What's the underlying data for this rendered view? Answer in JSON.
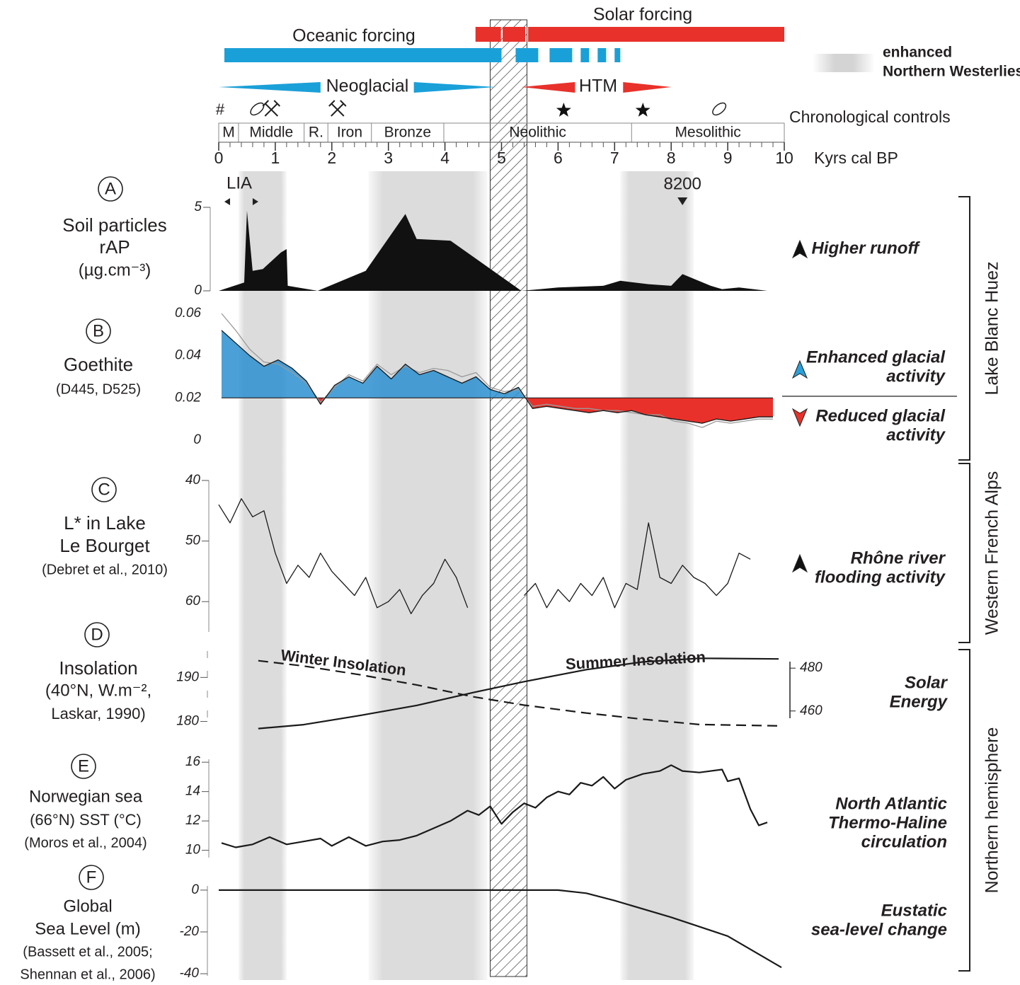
{
  "axis": {
    "xlim": [
      0,
      10
    ],
    "xticks": [
      0,
      1,
      2,
      3,
      4,
      5,
      6,
      7,
      8,
      9,
      10
    ],
    "label": "Kyrs cal BP"
  },
  "timeline": {
    "solar_forcing": {
      "label": "Solar forcing",
      "color": "#e8312a",
      "bars": [
        [
          4.54,
          4.99
        ],
        [
          5.02,
          5.42
        ],
        [
          5.47,
          10
        ]
      ]
    },
    "oceanic_forcing": {
      "label": "Oceanic forcing",
      "color": "#1aa0d8",
      "bars": [
        [
          0.1,
          5.0
        ],
        [
          5.25,
          5.65
        ],
        [
          5.85,
          6.25
        ],
        [
          6.4,
          6.55
        ],
        [
          6.7,
          6.85
        ],
        [
          7.0,
          7.1
        ]
      ]
    },
    "neoglacial": {
      "label": "Neoglacial",
      "color": "#1aa0d8",
      "wedges": [
        [
          0,
          1.8
        ],
        [
          4.9,
          3.45
        ]
      ]
    },
    "htm": {
      "label": "HTM",
      "color": "#e8312a",
      "wedges": [
        [
          5.35,
          6.3
        ],
        [
          8.0,
          7.15
        ]
      ]
    },
    "chronological_controls": {
      "label": "Chronological controls",
      "symbol": "#"
    },
    "periods": {
      "names": [
        "M",
        "Middle",
        "R.",
        "Iron",
        "Bronze",
        "Neolithic",
        "Mesolithic"
      ],
      "boundaries": [
        0,
        0.35,
        1.51,
        1.93,
        2.7,
        3.98,
        7.3,
        10
      ]
    },
    "bands": [
      [
        0.35,
        1.2
      ],
      [
        2.65,
        4.75
      ],
      [
        7.1,
        8.4
      ]
    ],
    "hatched": [
      4.8,
      5.45
    ],
    "legend": [
      "enhanced",
      "Northern Westerlies"
    ],
    "lia": {
      "label": "LIA",
      "range": [
        0.1,
        0.7
      ]
    },
    "event": {
      "label": "8200",
      "x": 8.2
    }
  },
  "regions": [
    "Lake Blanc Huez",
    "Western French Alps",
    "Northern hemisphere"
  ],
  "chart_data": [
    {
      "type": "area",
      "letter": "A",
      "label": [
        "Soil particles",
        "rAP",
        "(µg.cm⁻³)"
      ],
      "ylim": [
        0,
        5
      ],
      "yticks": [
        0,
        5
      ],
      "color": "#111111",
      "x": [
        0,
        0.45,
        0.5,
        0.6,
        0.78,
        1.1,
        1.2,
        1.22,
        1.75,
        2.6,
        3.3,
        3.5,
        4.1,
        5.35,
        6.0,
        6.8,
        7.1,
        7.6,
        8.0,
        8.2,
        8.7,
        8.9,
        9.2,
        9.7
      ],
      "values": [
        0,
        0.5,
        4.8,
        1.2,
        1.3,
        2.3,
        2.5,
        0.3,
        0,
        1.2,
        4.6,
        3.1,
        3.0,
        0,
        0.2,
        0.3,
        0.6,
        0.4,
        0.3,
        1.0,
        0.3,
        0.1,
        0.2,
        0
      ],
      "notes": [
        [
          "Higher runoff"
        ]
      ]
    },
    {
      "type": "line",
      "letter": "B",
      "label": [
        "Goethite",
        "(D445, D525)"
      ],
      "ylim": [
        0,
        0.06
      ],
      "yticks": [
        0,
        0.02,
        0.04,
        0.06
      ],
      "baseline": 0.02,
      "above_color": "#2a8fd0",
      "below_color": "#e8312a",
      "x": [
        0.05,
        0.3,
        0.55,
        0.8,
        1.05,
        1.3,
        1.55,
        1.8,
        2.05,
        2.3,
        2.55,
        2.8,
        3.05,
        3.3,
        3.55,
        3.8,
        4.05,
        4.3,
        4.55,
        4.8,
        5.05,
        5.3,
        5.55,
        5.8,
        6.05,
        6.3,
        6.55,
        6.8,
        7.05,
        7.3,
        7.55,
        7.8,
        8.05,
        8.3,
        8.55,
        8.8,
        9.05,
        9.3,
        9.55,
        9.8
      ],
      "series": [
        {
          "color": "#9a9a9a",
          "values": [
            0.06,
            0.052,
            0.043,
            0.037,
            0.036,
            0.032,
            0.027,
            0.018,
            0.025,
            0.031,
            0.028,
            0.036,
            0.031,
            0.035,
            0.032,
            0.034,
            0.033,
            0.03,
            0.032,
            0.025,
            0.023,
            0.024,
            0.016,
            0.017,
            0.016,
            0.015,
            0.015,
            0.014,
            0.014,
            0.013,
            0.012,
            0.012,
            0.009,
            0.008,
            0.006,
            0.009,
            0.008,
            0.009,
            0.01,
            0.01
          ]
        },
        {
          "color": "#1a1a1a",
          "values": [
            0.052,
            0.046,
            0.04,
            0.035,
            0.038,
            0.034,
            0.028,
            0.017,
            0.026,
            0.03,
            0.027,
            0.035,
            0.029,
            0.036,
            0.031,
            0.033,
            0.03,
            0.027,
            0.03,
            0.024,
            0.022,
            0.025,
            0.015,
            0.016,
            0.015,
            0.014,
            0.013,
            0.014,
            0.013,
            0.014,
            0.012,
            0.011,
            0.01,
            0.009,
            0.008,
            0.01,
            0.009,
            0.01,
            0.011,
            0.011
          ]
        }
      ],
      "notes": [
        [
          "Enhanced glacial",
          "activity"
        ],
        [
          "Reduced glacial",
          "activity"
        ]
      ]
    },
    {
      "type": "line",
      "letter": "C",
      "label": [
        "L* in Lake",
        "Le Bourget",
        "(Debret et al., 2010)"
      ],
      "ylim": [
        40,
        65
      ],
      "y_inverted": true,
      "yticks": [
        40,
        50,
        60
      ],
      "color": "#1a1a1a",
      "x": [
        0,
        0.2,
        0.4,
        0.6,
        0.8,
        1.0,
        1.2,
        1.4,
        1.6,
        1.8,
        2.0,
        2.2,
        2.4,
        2.6,
        2.8,
        3.0,
        3.2,
        3.4,
        3.6,
        3.8,
        4.0,
        4.2,
        4.4,
        4.6,
        4.8,
        5.0,
        5.2,
        5.4,
        5.6,
        5.8,
        6.0,
        6.2,
        6.4,
        6.6,
        6.8,
        7.0,
        7.2,
        7.4,
        7.6,
        7.8,
        8.0,
        8.2,
        8.4,
        8.6,
        8.8,
        9.0,
        9.2,
        9.4
      ],
      "values": [
        44,
        47,
        43,
        46,
        45,
        52,
        57,
        54,
        56,
        52,
        55,
        57,
        59,
        56,
        61,
        60,
        58,
        62,
        59,
        57,
        53,
        56,
        61,
        null,
        null,
        null,
        null,
        59,
        57,
        61,
        58,
        60,
        57,
        59,
        56,
        61,
        57,
        58,
        47,
        56,
        57,
        54,
        56,
        57,
        59,
        57,
        52,
        53
      ],
      "notes": [
        [
          "Rhône river",
          "flooding activity"
        ]
      ]
    },
    {
      "type": "line",
      "letter": "D",
      "label": [
        "Insolation",
        "(40°N, W.m⁻²,",
        "Laskar, 1990)"
      ],
      "ylim": [
        178,
        196
      ],
      "yticks": [
        180,
        190
      ],
      "y2lim": [
        451,
        488
      ],
      "y2ticks": [
        460,
        480
      ],
      "x": [
        0.7,
        1.5,
        2.5,
        3.5,
        4.5,
        5.4,
        6.5,
        7.5,
        8.5,
        9.9
      ],
      "series": [
        {
          "name": "Winter Insolation",
          "color": "#1a1a1a",
          "style": "dashed",
          "values": [
            193.8,
            192.6,
            190.6,
            188.3,
            185.6,
            183.7,
            181.9,
            180.5,
            179.3,
            179.0
          ]
        },
        {
          "name": "Summer Insolation",
          "color": "#1a1a1a",
          "style": "solid",
          "axis": "y2",
          "values": [
            451.8,
            453.6,
            457.9,
            462.6,
            468.6,
            473.7,
            479.3,
            482.9,
            484.6,
            484.3
          ]
        }
      ],
      "notes": [
        [
          "Solar",
          "Energy"
        ]
      ]
    },
    {
      "type": "line",
      "letter": "E",
      "label": [
        "Norwegian sea",
        "(66°N) SST (°C)",
        "(Moros et al., 2004)"
      ],
      "ylim": [
        9.5,
        16.2
      ],
      "yticks": [
        10,
        12,
        14,
        16
      ],
      "color": "#1a1a1a",
      "x": [
        0.05,
        0.3,
        0.6,
        0.9,
        1.2,
        1.5,
        1.8,
        2.0,
        2.3,
        2.6,
        2.9,
        3.2,
        3.5,
        3.8,
        4.1,
        4.4,
        4.6,
        4.8,
        5.0,
        5.2,
        5.4,
        5.6,
        5.8,
        6.0,
        6.2,
        6.4,
        6.6,
        6.8,
        7.0,
        7.2,
        7.5,
        7.8,
        8.0,
        8.2,
        8.5,
        8.9,
        9.0,
        9.2,
        9.4,
        9.55,
        9.7
      ],
      "values": [
        10.5,
        10.2,
        10.4,
        10.9,
        10.4,
        10.6,
        10.8,
        10.3,
        10.9,
        10.3,
        10.6,
        10.7,
        11.0,
        11.5,
        12.0,
        12.7,
        12.4,
        13.0,
        11.8,
        12.6,
        13.2,
        12.9,
        13.6,
        14.0,
        13.8,
        14.6,
        14.4,
        15.0,
        14.2,
        14.8,
        15.2,
        15.4,
        15.8,
        15.4,
        15.3,
        15.5,
        14.7,
        14.9,
        12.8,
        11.7,
        11.9
      ],
      "notes": [
        [
          "North Atlantic",
          "Thermo-Haline",
          "circulation"
        ]
      ]
    },
    {
      "type": "line",
      "letter": "F",
      "label": [
        "Global",
        "Sea Level (m)",
        "(Bassett et al., 2005;",
        "Shennan et al., 2006)"
      ],
      "ylim": [
        -41,
        2
      ],
      "yticks": [
        0,
        -20,
        -40
      ],
      "color": "#1a1a1a",
      "x": [
        0,
        1,
        2,
        3,
        4,
        5,
        6,
        6.5,
        7,
        8,
        9,
        9.95
      ],
      "values": [
        0,
        0,
        0,
        0,
        0,
        0,
        0,
        -1.5,
        -5,
        -13,
        -22,
        -37
      ],
      "notes": [
        [
          "Eustatic",
          "sea-level change"
        ]
      ]
    }
  ]
}
